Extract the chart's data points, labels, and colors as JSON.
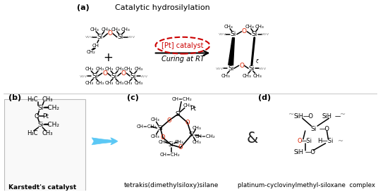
{
  "title_a": "(a)",
  "title_b": "(b)",
  "title_c": "(c)",
  "title_d": "(d)",
  "label_a": "Catalytic hydrosilylation",
  "label_b": "Karstedt's catalyst",
  "label_c": "tetrakis(dimethylsiloxy)silane",
  "label_d": "platinum-cyclovinylmethyl-siloxane  complex",
  "catalyst_text": "[Pt] catalyst",
  "curing_text": "Curing at RT",
  "ampersand": "&",
  "arrow_color": "#5bc8f5",
  "catalyst_ellipse_color": "#cc0000",
  "o_color": "#dd2200",
  "background_color": "#ffffff",
  "fig_width": 5.53,
  "fig_height": 2.73,
  "dpi": 100
}
